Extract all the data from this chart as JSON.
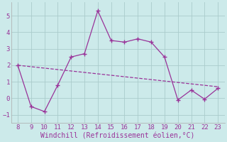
{
  "x": [
    8,
    9,
    10,
    11,
    12,
    13,
    14,
    15,
    16,
    17,
    18,
    19,
    20,
    21,
    22,
    23
  ],
  "y": [
    2.0,
    -0.5,
    -0.8,
    0.8,
    2.5,
    2.7,
    5.3,
    3.5,
    3.4,
    3.6,
    3.4,
    2.5,
    -0.1,
    0.5,
    -0.05,
    0.6
  ],
  "trend_x": [
    8,
    23
  ],
  "trend_y": [
    2.0,
    0.7
  ],
  "line_color": "#993399",
  "bg_color": "#cceaea",
  "xlabel": "Windchill (Refroidissement éolien,°C)",
  "ylim": [
    -1.5,
    5.8
  ],
  "xlim": [
    7.5,
    23.5
  ],
  "yticks": [
    -1,
    0,
    1,
    2,
    3,
    4,
    5
  ],
  "xticks": [
    8,
    9,
    10,
    11,
    12,
    13,
    14,
    15,
    16,
    17,
    18,
    19,
    20,
    21,
    22,
    23
  ],
  "grid_color": "#aacccc",
  "marker": "+",
  "markersize": 4,
  "linewidth": 0.9,
  "xlabel_fontsize": 7,
  "tick_fontsize": 6.5,
  "xlabel_color": "#993399",
  "tick_color": "#993399"
}
